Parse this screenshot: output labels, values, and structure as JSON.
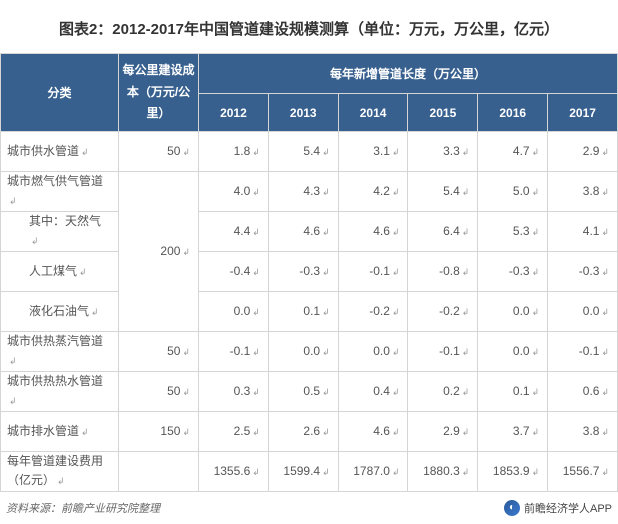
{
  "title": "图表2：2012-2017年中国管道建设规模测算（单位：万元，万公里，亿元）",
  "header": {
    "category": "分类",
    "cost_per_km": "每公里建设成本（万元/公里）",
    "length_group": "每年新增管道长度（万公里）",
    "years": [
      "2012",
      "2013",
      "2014",
      "2015",
      "2016",
      "2017"
    ]
  },
  "rows": [
    {
      "label": "城市供水管道",
      "indent": false,
      "cost": "50",
      "values": [
        "1.8",
        "5.4",
        "3.1",
        "3.3",
        "4.7",
        "2.9"
      ]
    },
    {
      "label": "城市燃气供气管道",
      "indent": false,
      "cost": "",
      "values": [
        "4.0",
        "4.3",
        "4.2",
        "5.4",
        "5.0",
        "3.8"
      ]
    },
    {
      "label": "其中：天然气",
      "indent": true,
      "cost": "",
      "values": [
        "4.4",
        "4.6",
        "4.6",
        "6.4",
        "5.3",
        "4.1"
      ]
    },
    {
      "label": "人工煤气",
      "indent": true,
      "cost": "200",
      "values": [
        "-0.4",
        "-0.3",
        "-0.1",
        "-0.8",
        "-0.3",
        "-0.3"
      ]
    },
    {
      "label": "液化石油气",
      "indent": true,
      "cost": "",
      "values": [
        "0.0",
        "0.1",
        "-0.2",
        "-0.2",
        "0.0",
        "0.0"
      ]
    },
    {
      "label": "城市供热蒸汽管道",
      "indent": false,
      "cost": "50",
      "values": [
        "-0.1",
        "0.0",
        "0.0",
        "-0.1",
        "0.0",
        "-0.1"
      ]
    },
    {
      "label": "城市供热热水管道",
      "indent": false,
      "cost": "50",
      "values": [
        "0.3",
        "0.5",
        "0.4",
        "0.2",
        "0.1",
        "0.6"
      ]
    },
    {
      "label": "城市排水管道",
      "indent": false,
      "cost": "150",
      "values": [
        "2.5",
        "2.6",
        "4.6",
        "2.9",
        "3.7",
        "3.8"
      ]
    },
    {
      "label": "每年管道建设费用（亿元）",
      "indent": false,
      "cost": "",
      "values": [
        "1355.6",
        "1599.4",
        "1787.0",
        "1880.3",
        "1853.9",
        "1556.7"
      ]
    }
  ],
  "cost_merge": {
    "start": 1,
    "span": 4,
    "value": "200"
  },
  "footer": {
    "source": "资料来源：前瞻产业研究院整理",
    "app": "前瞻经济学人APP",
    "logo_glyph": "◐"
  },
  "style": {
    "header_bg": "#37608f",
    "header_fg": "#ffffff",
    "border_color": "#d5d5d5",
    "text_color": "#555"
  }
}
